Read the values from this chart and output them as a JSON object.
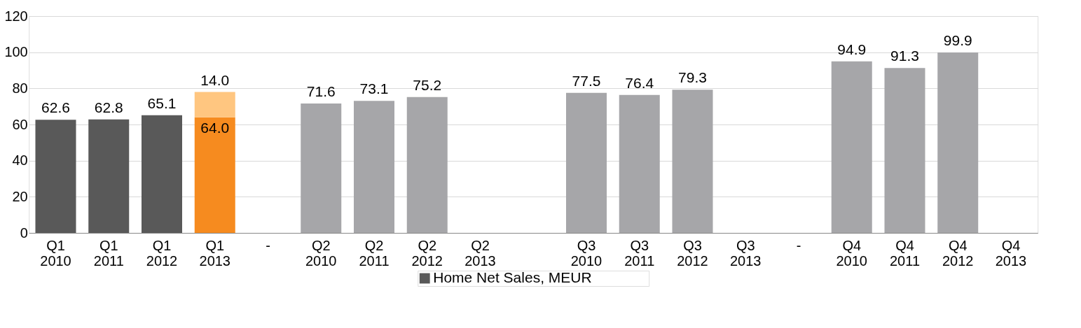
{
  "chart_data": {
    "type": "bar",
    "stacked": true,
    "grid": "y",
    "legend": "bottom",
    "categories": [
      "Q1 2010",
      "Q1 2011",
      "Q1 2012",
      "Q1 2013",
      "-",
      "Q2 2010",
      "Q2 2011",
      "Q2 2012",
      "Q2 2013",
      null,
      "Q3 2010",
      "Q3 2011",
      "Q3 2012",
      "Q3 2013",
      "-",
      "Q4 2010",
      "Q4 2011",
      "Q4 2012",
      "Q4 2013"
    ],
    "ylim": [
      0,
      120
    ],
    "yticks": [
      0,
      20,
      40,
      60,
      80,
      100,
      120
    ],
    "series": [
      {
        "name": "Home Net Sales, MEUR",
        "color": "#595959",
        "colors": [
          "#595959",
          "#595959",
          "#595959",
          "#f68b1f",
          null,
          "#a6a6a9",
          "#a6a6a9",
          "#a6a6a9",
          null,
          null,
          "#a6a6a9",
          "#a6a6a9",
          "#a6a6a9",
          null,
          null,
          "#a6a6a9",
          "#a6a6a9",
          "#a6a6a9",
          null
        ],
        "values": [
          62.6,
          62.8,
          65.1,
          64.0,
          null,
          71.6,
          73.1,
          75.2,
          null,
          null,
          77.5,
          76.4,
          79.3,
          null,
          null,
          94.9,
          91.3,
          99.9,
          null
        ],
        "value_labels": [
          "62.6",
          "62.8",
          "65.1",
          "64.0",
          null,
          "71.6",
          "73.1",
          "75.2",
          null,
          null,
          "77.5",
          "76.4",
          "79.3",
          null,
          null,
          "94.9",
          "91.3",
          "99.9",
          null
        ]
      },
      {
        "color": "#ffc680",
        "values": [
          null,
          null,
          null,
          14.0,
          null,
          null,
          null,
          null,
          null,
          null,
          null,
          null,
          null,
          null,
          null,
          null,
          null,
          null,
          null
        ],
        "value_labels": [
          null,
          null,
          null,
          "14.0",
          null,
          null,
          null,
          null,
          null,
          null,
          null,
          null,
          null,
          null,
          null,
          null,
          null,
          null,
          null
        ]
      }
    ]
  }
}
